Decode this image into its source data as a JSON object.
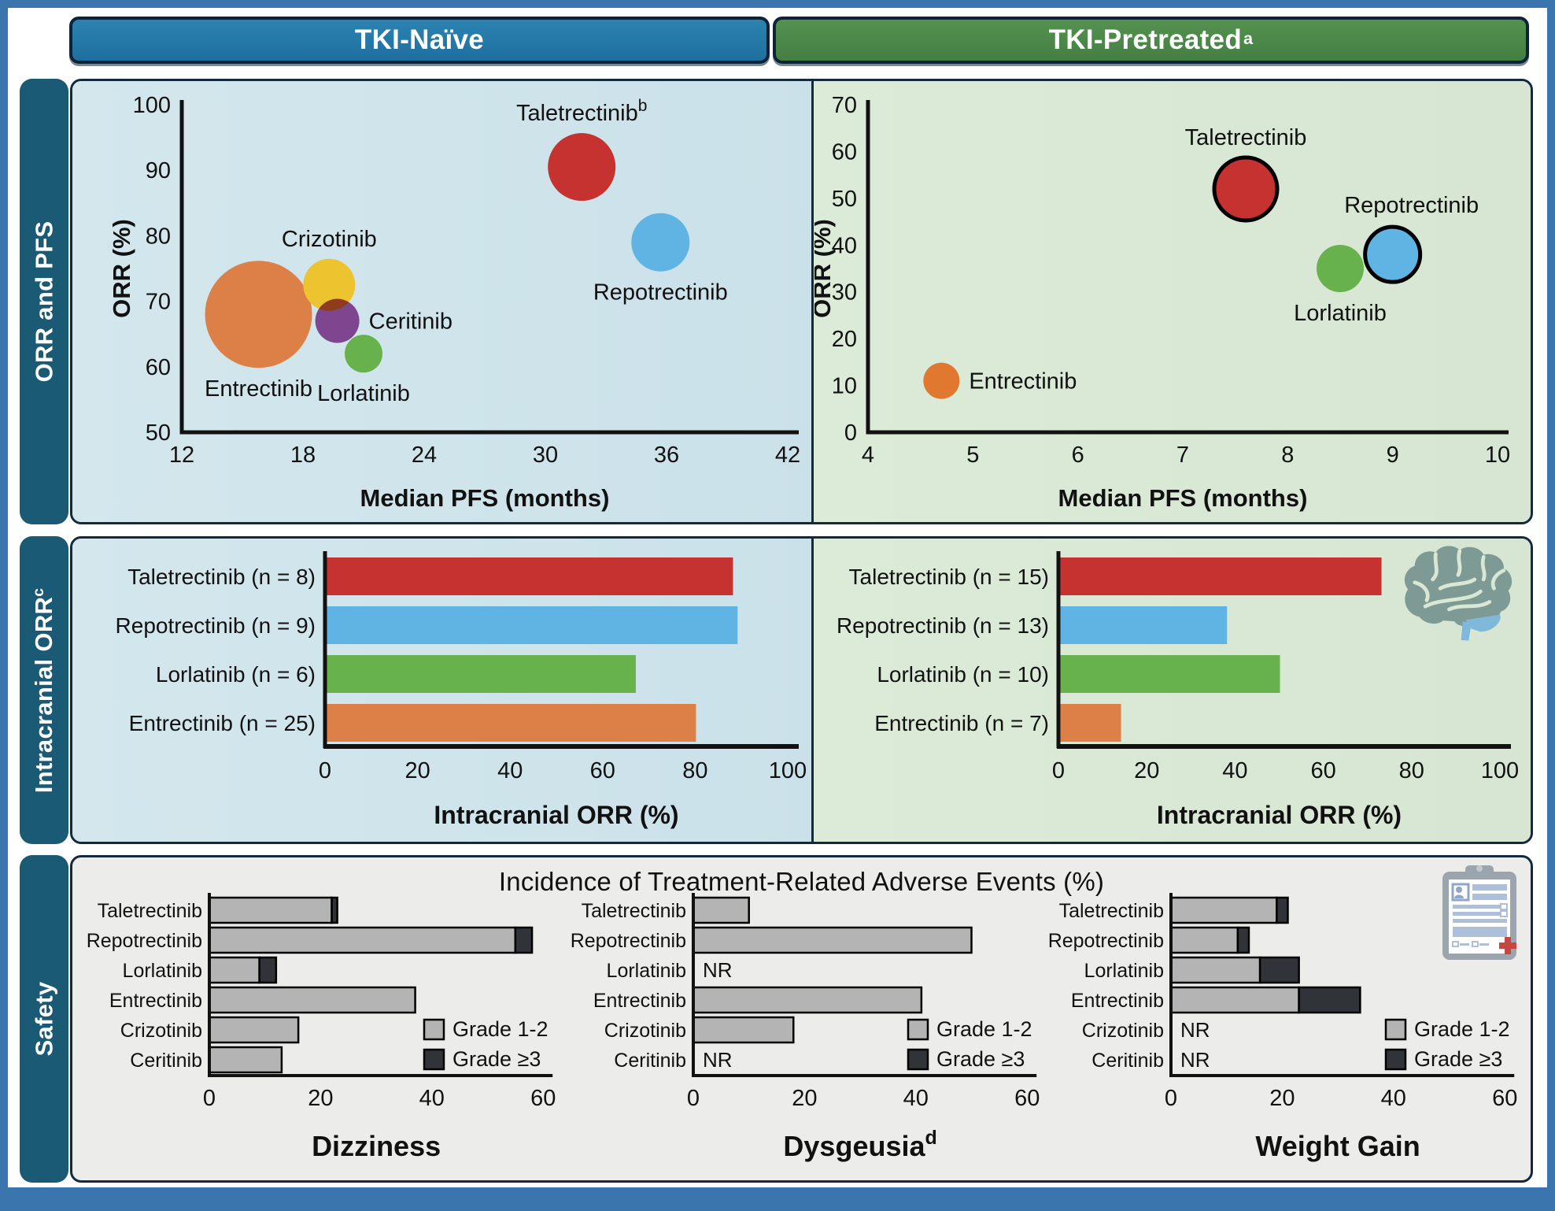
{
  "header": {
    "left": "TKI-Naïve",
    "right": "TKI-Pretreated",
    "right_sup": "a"
  },
  "row_tabs": [
    {
      "label": "ORR and PFS",
      "sup": ""
    },
    {
      "label": "Intracranial ORR",
      "sup": "c"
    },
    {
      "label": "Safety",
      "sup": ""
    }
  ],
  "safety_title": "Incidence of Treatment-Related Adverse Events (%)",
  "legend": {
    "labels": [
      "Grade 1-2",
      "Grade ≥3"
    ]
  },
  "colors": {
    "frame_blue": "#3a76ad",
    "header_blue": "#2379a5",
    "header_green": "#4e8b4b",
    "tab_teal": "#1b5a74",
    "panel_border": "#13293e",
    "bg_blue": "#cfe4ea",
    "bg_green": "#d9e8d5",
    "bg_gray": "#ecedea",
    "taletrectinib_red": "#c63230",
    "repotrectinib_blue": "#5fb4e3",
    "lorlatinib_green": "#67b24c",
    "entrectinib_orange": "#dd8048",
    "entrectinib_orange2": "#e0792f",
    "crizotinib_yellow": "#edc32f",
    "ceritinib_purple": "#9a4e9a",
    "grade12_gray": "#b4b4b4",
    "grade3_dark": "#303338",
    "axis_black": "#111111"
  },
  "chart_data": [
    {
      "id": "orr_pfs_naive",
      "type": "scatter",
      "title": "",
      "xlabel": "Median PFS (months)",
      "ylabel": "ORR (%)",
      "xlim": [
        12,
        42
      ],
      "xticks": [
        12,
        18,
        24,
        30,
        36,
        42
      ],
      "ylim": [
        50,
        100
      ],
      "yticks": [
        100,
        90,
        80,
        70,
        60,
        50
      ],
      "points": [
        {
          "name": "Entrectinib",
          "sup": "",
          "x": 15.8,
          "y": 68,
          "r": 68,
          "color": "#dd8048",
          "outline": false,
          "label_pos": "below"
        },
        {
          "name": "Crizotinib",
          "sup": "",
          "x": 19.3,
          "y": 72.5,
          "r": 33,
          "color": "#edc32f",
          "outline": false,
          "label_pos": "above"
        },
        {
          "name": "Ceritinib",
          "sup": "",
          "x": 19.7,
          "y": 67,
          "r": 28,
          "color": "#9a4e9a",
          "outline": false,
          "label_pos": "right",
          "blend": "multiply"
        },
        {
          "name": "Lorlatinib",
          "sup": "",
          "x": 21.0,
          "y": 62,
          "r": 24,
          "color": "#67b24c",
          "outline": false,
          "label_pos": "below"
        },
        {
          "name": "Taletrectinib",
          "sup": "b",
          "x": 31.8,
          "y": 90.5,
          "r": 43,
          "color": "#c63230",
          "outline": false,
          "label_pos": "above"
        },
        {
          "name": "Repotrectinib",
          "sup": "",
          "x": 35.7,
          "y": 79,
          "r": 37,
          "color": "#5fb4e3",
          "outline": false,
          "label_pos": "below"
        }
      ]
    },
    {
      "id": "orr_pfs_pretreated",
      "type": "scatter",
      "title": "",
      "xlabel": "Median PFS (months)",
      "ylabel": "ORR (%)",
      "xlim": [
        4,
        10
      ],
      "xticks": [
        4,
        5,
        6,
        7,
        8,
        9,
        10
      ],
      "ylim": [
        0,
        70
      ],
      "yticks": [
        70,
        60,
        50,
        40,
        30,
        20,
        10,
        0
      ],
      "points": [
        {
          "name": "Entrectinib",
          "sup": "",
          "x": 4.7,
          "y": 11,
          "r": 23,
          "color": "#e0792f",
          "outline": false,
          "label_pos": "right"
        },
        {
          "name": "Taletrectinib",
          "sup": "",
          "x": 7.6,
          "y": 52,
          "r": 40,
          "color": "#c63230",
          "outline": true,
          "label_pos": "above"
        },
        {
          "name": "Lorlatinib",
          "sup": "",
          "x": 8.5,
          "y": 35,
          "r": 30,
          "color": "#67b24c",
          "outline": false,
          "label_pos": "below"
        },
        {
          "name": "Repotrectinib",
          "sup": "",
          "x": 9.0,
          "y": 38,
          "r": 35,
          "color": "#5fb4e3",
          "outline": true,
          "label_pos": "above-right"
        }
      ]
    },
    {
      "id": "ic_naive",
      "type": "bar",
      "orientation": "horizontal",
      "xlabel": "Intracranial ORR (%)",
      "xlim": [
        0,
        100
      ],
      "xticks": [
        0,
        20,
        40,
        60,
        80,
        100
      ],
      "categories": [
        "Taletrectinib (n = 8)",
        "Repotrectinib (n = 9)",
        "Lorlatinib (n = 6)",
        "Entrectinib (n = 25)"
      ],
      "values": [
        88,
        89,
        67,
        80
      ],
      "colors": [
        "#c63230",
        "#5fb4e3",
        "#67b24c",
        "#dd8048"
      ]
    },
    {
      "id": "ic_pretreated",
      "type": "bar",
      "orientation": "horizontal",
      "xlabel": "Intracranial ORR (%)",
      "xlim": [
        0,
        100
      ],
      "xticks": [
        0,
        20,
        40,
        60,
        80,
        100
      ],
      "categories": [
        "Taletrectinib (n = 15)",
        "Repotrectinib (n = 13)",
        "Lorlatinib (n = 10)",
        "Entrectinib (n = 7)"
      ],
      "values": [
        73,
        38,
        50,
        14
      ],
      "colors": [
        "#c63230",
        "#5fb4e3",
        "#67b24c",
        "#dd8048"
      ]
    },
    {
      "id": "dizziness",
      "type": "stacked-bar",
      "title": "Dizziness",
      "title_sup": "",
      "xlim": [
        0,
        60
      ],
      "xticks": [
        0,
        20,
        40,
        60
      ],
      "categories": [
        "Taletrectinib",
        "Repotrectinib",
        "Lorlatinib",
        "Entrectinib",
        "Crizotinib",
        "Ceritinib"
      ],
      "series": [
        {
          "name": "Grade 1-2",
          "values": [
            22,
            55,
            9,
            37,
            16,
            13
          ]
        },
        {
          "name": "Grade ≥3",
          "values": [
            1,
            3,
            3,
            0,
            0,
            0
          ]
        }
      ],
      "nr": [
        false,
        false,
        false,
        false,
        false,
        false
      ]
    },
    {
      "id": "dysgeusia",
      "type": "stacked-bar",
      "title": "Dysgeusia",
      "title_sup": "d",
      "xlim": [
        0,
        60
      ],
      "xticks": [
        0,
        20,
        40,
        60
      ],
      "categories": [
        "Taletrectinib",
        "Repotrectinib",
        "Lorlatinib",
        "Entrectinib",
        "Crizotinib",
        "Ceritinib"
      ],
      "series": [
        {
          "name": "Grade 1-2",
          "values": [
            10,
            50,
            0,
            41,
            18,
            0
          ]
        },
        {
          "name": "Grade ≥3",
          "values": [
            0,
            0,
            0,
            0,
            0,
            0
          ]
        }
      ],
      "nr": [
        false,
        false,
        true,
        false,
        false,
        true
      ]
    },
    {
      "id": "weight_gain",
      "type": "stacked-bar",
      "title": "Weight Gain",
      "title_sup": "",
      "xlim": [
        0,
        60
      ],
      "xticks": [
        0,
        20,
        40,
        60
      ],
      "categories": [
        "Taletrectinib",
        "Repotrectinib",
        "Lorlatinib",
        "Entrectinib",
        "Crizotinib",
        "Ceritinib"
      ],
      "series": [
        {
          "name": "Grade 1-2",
          "values": [
            19,
            12,
            16,
            23,
            0,
            0
          ]
        },
        {
          "name": "Grade ≥3",
          "values": [
            2,
            2,
            7,
            11,
            0,
            0
          ]
        }
      ],
      "nr": [
        false,
        false,
        false,
        false,
        true,
        true
      ]
    }
  ]
}
